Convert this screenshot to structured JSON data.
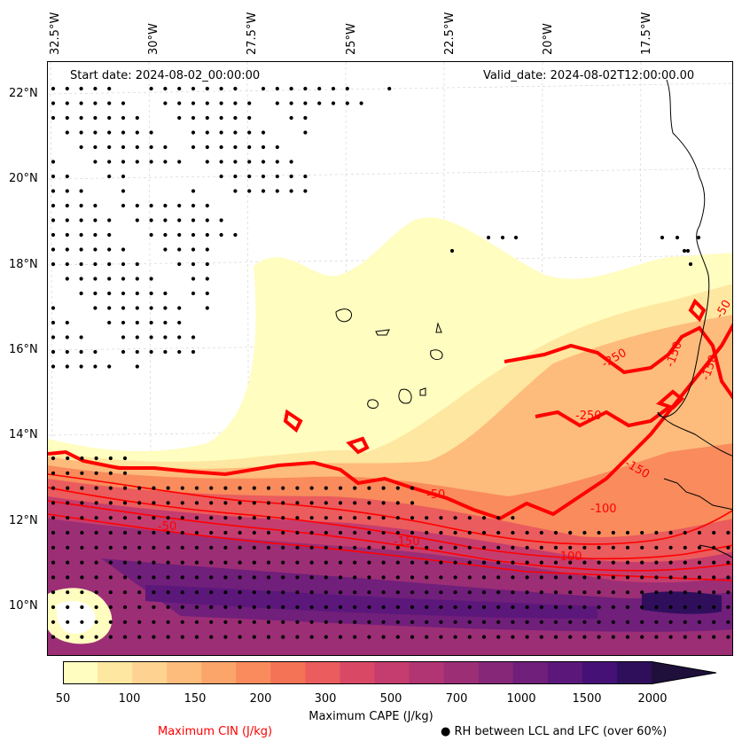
{
  "map": {
    "start_date": "Start date: 2024-08-02_00:00:00",
    "valid_date": "Valid_date: 2024-08-02T12:00:00.00",
    "lon_labels": [
      "32.5°W",
      "30°W",
      "27.5°W",
      "25°W",
      "22.5°W",
      "20°W",
      "17.5°W"
    ],
    "lat_labels": [
      "22°N",
      "20°N",
      "18°N",
      "16°N",
      "14°N",
      "12°N",
      "10°N"
    ],
    "contour_labels": [
      "-50",
      "-50",
      "-150",
      "-100",
      "-250",
      "-250",
      "-150",
      "-100",
      "-150",
      "-150",
      "-50"
    ],
    "colors": {
      "cin_contour": "#ff0000",
      "coast": "#000000",
      "stipple": "#000000",
      "background": "#ffffff"
    }
  },
  "colorbar": {
    "title": "Maximum CAPE (J/kg)",
    "ticks": [
      "50",
      "100",
      "150",
      "200",
      "300",
      "500",
      "700",
      "1000",
      "1500",
      "2000"
    ],
    "colors": [
      "#fffdbf",
      "#fee7a0",
      "#fed391",
      "#fdbb7c",
      "#fba56a",
      "#f98b5c",
      "#f47256",
      "#ea5c5d",
      "#d94966",
      "#c53d6e",
      "#b13573",
      "#9c2e76",
      "#862778",
      "#701f7a",
      "#5c177b",
      "#451177",
      "#2f0f5c",
      "#1e0f3b"
    ]
  },
  "legend": {
    "cin": "Maximum CIN (J/kg)",
    "rh": "● RH between LCL and LFC (over 60%)"
  }
}
